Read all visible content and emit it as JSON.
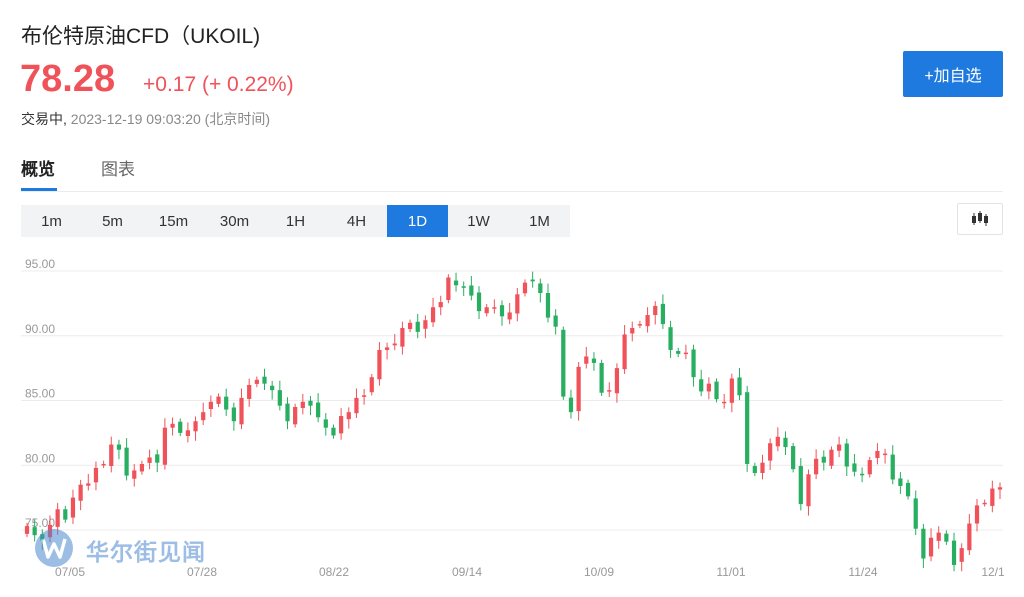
{
  "header": {
    "title": "布伦特原油CFD（UKOIL)",
    "price": "78.28",
    "change": "+0.17 (+ 0.22%)",
    "status": "交易中,",
    "timestamp": "2023-12-19 09:03:20 (北京时间)",
    "add_button_label": "+加自选"
  },
  "tabs": [
    {
      "label": "概览",
      "active": true
    },
    {
      "label": "图表",
      "active": false
    }
  ],
  "ranges": [
    {
      "label": "1m",
      "active": false
    },
    {
      "label": "5m",
      "active": false
    },
    {
      "label": "15m",
      "active": false
    },
    {
      "label": "30m",
      "active": false
    },
    {
      "label": "1H",
      "active": false
    },
    {
      "label": "4H",
      "active": false
    },
    {
      "label": "1D",
      "active": true
    },
    {
      "label": "1W",
      "active": false
    },
    {
      "label": "1M",
      "active": false
    }
  ],
  "chart_type_icon": "candlestick-icon",
  "watermark": {
    "icon": "wallstreetcn-logo-icon",
    "text": "华尔街见闻"
  },
  "colors": {
    "up": "#f0525a",
    "down": "#27ae60",
    "accent": "#1f7ae0",
    "grid": "#ececec",
    "axis_text": "#999999"
  },
  "chart_data": {
    "type": "candlestick",
    "y_ticks": [
      "95.00",
      "90.00",
      "85.00",
      "80.00",
      "75.00"
    ],
    "x_ticks": [
      "07/05",
      "07/28",
      "08/22",
      "09/14",
      "10/09",
      "11/01",
      "11/24",
      "12/1"
    ],
    "ylim": [
      73.0,
      96.0
    ],
    "grid": "horizontal",
    "closes": [
      75.3,
      74.6,
      74.2,
      75.4,
      76.6,
      75.8,
      77.5,
      78.5,
      78.6,
      79.8,
      80.1,
      81.6,
      81.2,
      79.2,
      79.6,
      80.1,
      80.6,
      80.2,
      82.9,
      83.2,
      82.5,
      82.7,
      83.4,
      84.1,
      84.9,
      85.3,
      84.3,
      83.4,
      85.2,
      86.2,
      86.6,
      86.3,
      85.8,
      84.6,
      83.4,
      84.5,
      84.9,
      84.6,
      83.7,
      82.9,
      82.3,
      83.8,
      84.1,
      85.2,
      85.4,
      86.8,
      88.9,
      89.1,
      89.4,
      90.6,
      91.0,
      90.3,
      91.2,
      92.2,
      92.6,
      94.5,
      93.9,
      93.8,
      93.1,
      91.9,
      92.2,
      92.2,
      91.5,
      91.8,
      93.2,
      94.1,
      94.2,
      93.3,
      91.4,
      90.7,
      85.3,
      84.1,
      87.6,
      88.4,
      87.9,
      85.6,
      85.8,
      87.5,
      90.1,
      90.6,
      90.9,
      91.6,
      92.3,
      90.9,
      88.9,
      88.6,
      88.7,
      86.8,
      85.7,
      86.3,
      85.1,
      84.9,
      86.7,
      85.4,
      80.1,
      79.4,
      80.2,
      81.7,
      82.2,
      81.4,
      79.7,
      77.0,
      79.3,
      80.5,
      80.2,
      81.2,
      81.6,
      79.9,
      79.5,
      79.3,
      80.4,
      81.1,
      80.9,
      78.9,
      78.4,
      77.6,
      75.1,
      72.8,
      74.4,
      74.8,
      74.1,
      72.3,
      73.6,
      75.5,
      76.9,
      77.1,
      78.2,
      78.3
    ]
  }
}
